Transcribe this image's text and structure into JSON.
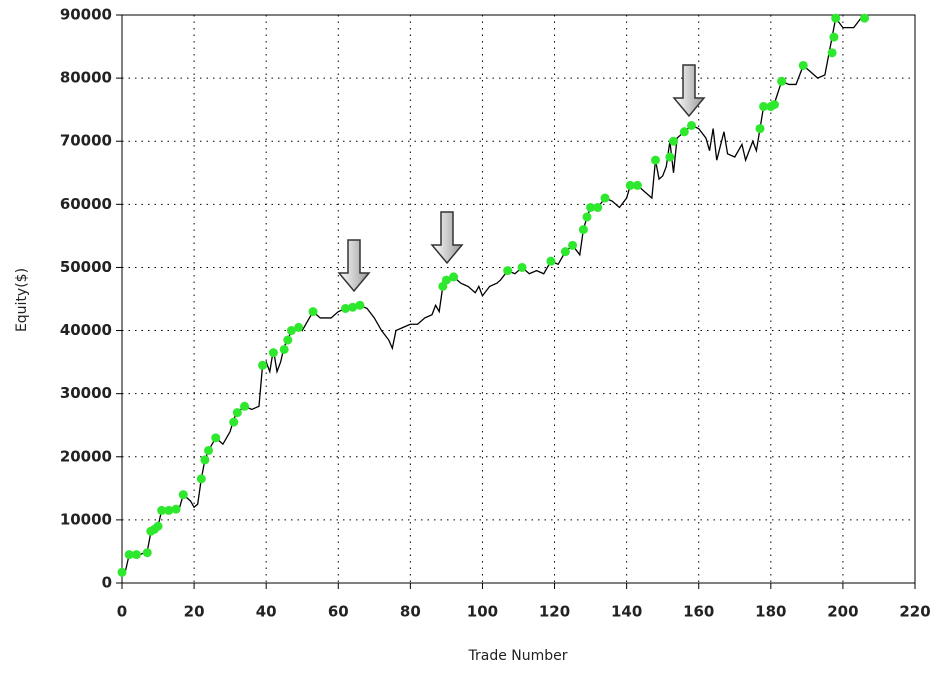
{
  "chart_data": {
    "type": "line",
    "x_label": "Trade Number",
    "y_label": "Equity($)",
    "xlim": [
      0,
      220
    ],
    "xticks": [
      0,
      20,
      40,
      60,
      80,
      100,
      120,
      140,
      160,
      180,
      200,
      220
    ],
    "ylim": [
      0,
      90000
    ],
    "yticks": [
      0,
      10000,
      20000,
      30000,
      40000,
      50000,
      60000,
      70000,
      80000,
      90000
    ],
    "grid": true,
    "series": [
      {
        "style": "line",
        "color": "#000000",
        "x": [
          0,
          1,
          2,
          5,
          7,
          8,
          10,
          11,
          14,
          16,
          17,
          19,
          20,
          21,
          22,
          23,
          24,
          26,
          28,
          30,
          31,
          32,
          34,
          36,
          38,
          39,
          40,
          41,
          42,
          43,
          44,
          45,
          46,
          47,
          49,
          50,
          51,
          53,
          55,
          58,
          60,
          62,
          64,
          66,
          68,
          70,
          72,
          74,
          75,
          76,
          78,
          80,
          82,
          84,
          86,
          87,
          88,
          89,
          90,
          92,
          94,
          96,
          98,
          99,
          100,
          102,
          104,
          105,
          107,
          109,
          111,
          113,
          115,
          117,
          119,
          121,
          123,
          125,
          127,
          128,
          129,
          130,
          132,
          134,
          136,
          138,
          140,
          141,
          143,
          145,
          147,
          148,
          149,
          150,
          151,
          152,
          153,
          154,
          156,
          158,
          160,
          162,
          163,
          164,
          165,
          167,
          168,
          170,
          172,
          173,
          175,
          176,
          177,
          178,
          180,
          181,
          183,
          185,
          187,
          189,
          191,
          193,
          195,
          197,
          198,
          200,
          203,
          205,
          206
        ],
        "values": [
          2000,
          2000,
          4500,
          4500,
          5000,
          8000,
          9000,
          11500,
          11500,
          12000,
          14000,
          13000,
          12000,
          12500,
          16500,
          19500,
          21000,
          23000,
          22000,
          24000,
          26000,
          27000,
          28000,
          27500,
          28000,
          34500,
          35000,
          33500,
          37000,
          33500,
          35000,
          37500,
          38500,
          40000,
          40500,
          40000,
          41000,
          43000,
          42000,
          42000,
          43000,
          43500,
          43500,
          44000,
          43500,
          42000,
          40000,
          38500,
          37200,
          40000,
          40500,
          41000,
          41000,
          42000,
          42500,
          44000,
          43000,
          47000,
          48000,
          48500,
          47500,
          47000,
          46000,
          47000,
          45500,
          47000,
          47500,
          48000,
          49500,
          49000,
          50000,
          49000,
          49500,
          49000,
          51000,
          50500,
          52500,
          53500,
          52000,
          56000,
          58000,
          59500,
          59500,
          61000,
          60500,
          59500,
          61000,
          63000,
          63000,
          62000,
          61000,
          67000,
          64000,
          64500,
          66000,
          70000,
          65000,
          70500,
          71500,
          72500,
          72000,
          70500,
          68500,
          72000,
          67000,
          71500,
          68000,
          67500,
          69500,
          67000,
          70000,
          68500,
          72000,
          75500,
          75500,
          76000,
          79500,
          79000,
          79000,
          82000,
          81000,
          80000,
          80500,
          86500,
          89500,
          88000,
          88000,
          89500,
          89500
        ]
      },
      {
        "style": "markers",
        "color": "#2ee82e",
        "x": [
          0,
          2,
          4,
          7,
          8,
          9,
          10,
          11,
          13,
          15,
          17,
          22,
          23,
          24,
          26,
          31,
          32,
          34,
          39,
          42,
          45,
          46,
          47,
          49,
          53,
          62,
          64,
          66,
          89,
          90,
          92,
          107,
          111,
          119,
          123,
          125,
          128,
          129,
          130,
          132,
          134,
          141,
          143,
          148,
          152,
          153,
          156,
          158,
          177,
          178,
          180,
          181,
          183,
          189,
          197,
          197.5,
          198,
          206
        ],
        "values": [
          1700,
          4500,
          4500,
          4800,
          8200,
          8500,
          9000,
          11500,
          11500,
          11700,
          14000,
          16500,
          19500,
          21000,
          23000,
          25500,
          27000,
          28000,
          34500,
          36500,
          37000,
          38500,
          40000,
          40500,
          43000,
          43500,
          43700,
          44000,
          47000,
          48000,
          48500,
          49500,
          50000,
          51000,
          52500,
          53500,
          56000,
          58000,
          59500,
          59500,
          61000,
          63000,
          63000,
          67000,
          67500,
          70000,
          71500,
          72500,
          72000,
          75500,
          75500,
          75800,
          79500,
          82000,
          84000,
          86500,
          89500,
          89500
        ]
      }
    ]
  }
}
